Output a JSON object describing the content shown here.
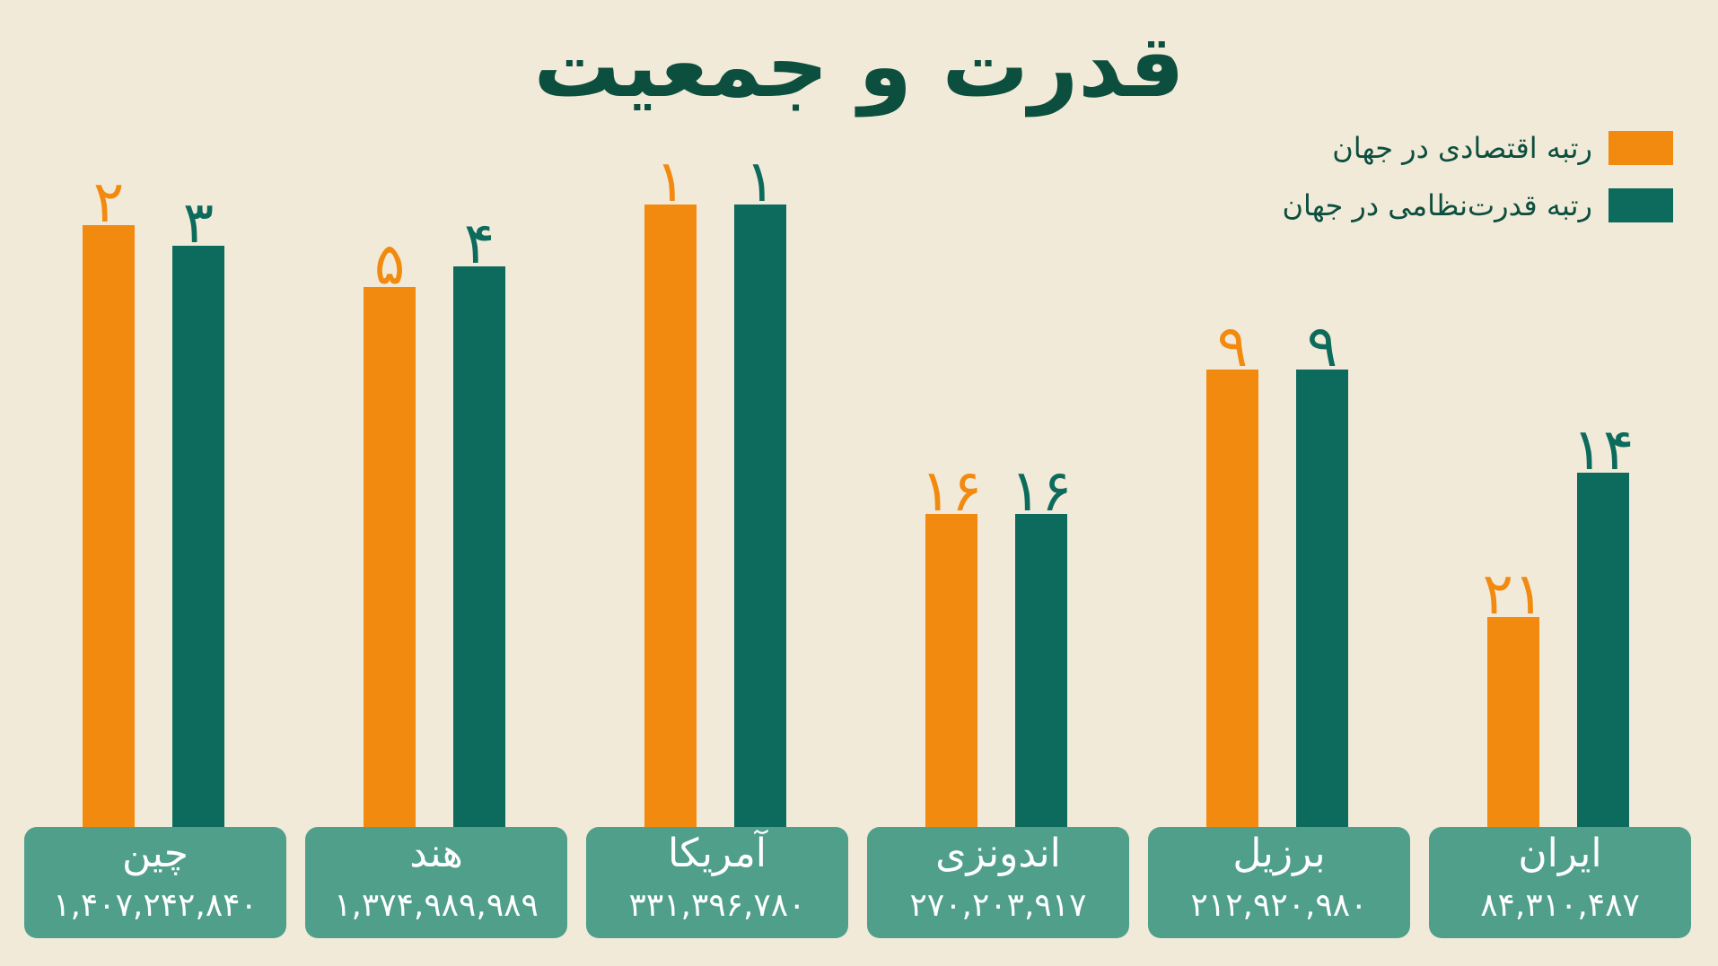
{
  "colors": {
    "economic": "#f28a0f",
    "military": "#0c6b5c",
    "background": "#f2ead8",
    "label_box": "#4f9f8b"
  },
  "chart_data": {
    "type": "bar",
    "title": "قدرت و جمعیت",
    "categories": [
      "چین",
      "هند",
      "آمریکا",
      "اندونزی",
      "برزیل",
      "ایران"
    ],
    "populations": [
      "۱,۴۰۷,۲۴۲,۸۴۰",
      "۱,۳۷۴,۹۸۹,۹۸۹",
      "۳۳۱,۳۹۶,۷۸۰",
      "۲۷۰,۲۰۳,۹۱۷",
      "۲۱۲,۹۲۰,۹۸۰",
      "۸۴,۳۱۰,۴۸۷"
    ],
    "series": [
      {
        "name": "رتبه اقتصادی در جهان",
        "values": [
          2,
          5,
          1,
          16,
          9,
          21
        ],
        "labels": [
          "۲",
          "۵",
          "۱",
          "۱۶",
          "۹",
          "۲۱"
        ],
        "color": "#f28a0f"
      },
      {
        "name": "رتبه قدرت‌نظامی در جهان",
        "values": [
          3,
          4,
          1,
          16,
          9,
          14
        ],
        "labels": [
          "۳",
          "۴",
          "۱",
          "۱۶",
          "۹",
          "۱۴"
        ],
        "color": "#0c6b5c"
      }
    ],
    "xlabel": "",
    "ylabel": "",
    "axis_direction": "rank (lower rank = taller bar)",
    "grid": false,
    "legend_position": "top-right"
  }
}
